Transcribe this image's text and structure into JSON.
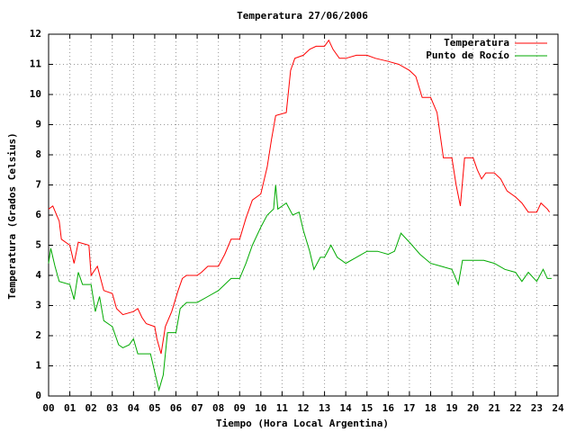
{
  "chart_data": {
    "type": "line",
    "title": "Temperatura 27/06/2006",
    "x_label": "Tiempo (Hora Local Argentina)",
    "y_label": "Temperatura (Grados Celsius)",
    "xlim": [
      0,
      24
    ],
    "xticks": [
      {
        "value": 0,
        "label": "00"
      },
      {
        "value": 1,
        "label": "01"
      },
      {
        "value": 2,
        "label": "02"
      },
      {
        "value": 3,
        "label": "03"
      },
      {
        "value": 4,
        "label": "04"
      },
      {
        "value": 5,
        "label": "05"
      },
      {
        "value": 6,
        "label": "06"
      },
      {
        "value": 7,
        "label": "07"
      },
      {
        "value": 8,
        "label": "08"
      },
      {
        "value": 9,
        "label": "09"
      },
      10,
      11,
      12,
      13,
      14,
      15,
      16,
      17,
      18,
      19,
      20,
      21,
      22,
      23,
      24
    ],
    "ylim": [
      0,
      12
    ],
    "yticks": [
      0,
      1,
      2,
      3,
      4,
      5,
      6,
      7,
      8,
      9,
      10,
      11,
      12
    ],
    "grid": true,
    "legend": "top-right",
    "series": [
      {
        "name": "Temperatura",
        "color": "#ff0000",
        "x": [
          0.0,
          0.2,
          0.5,
          0.6,
          1.0,
          1.2,
          1.4,
          1.9,
          2.0,
          2.3,
          2.6,
          3.0,
          3.2,
          3.5,
          4.0,
          4.2,
          4.4,
          4.6,
          5.0,
          5.1,
          5.3,
          5.5,
          5.8,
          6.1,
          6.3,
          6.5,
          7.0,
          7.2,
          7.5,
          8.0,
          8.3,
          8.6,
          9.0,
          9.3,
          9.6,
          10.0,
          10.3,
          10.5,
          10.7,
          11.2,
          11.4,
          11.6,
          12.0,
          12.3,
          12.6,
          13.0,
          13.2,
          13.4,
          13.7,
          14.0,
          14.5,
          15.0,
          15.4,
          16.0,
          16.5,
          17.0,
          17.3,
          17.6,
          18.0,
          18.3,
          18.6,
          19.0,
          19.2,
          19.4,
          19.6,
          20.0,
          20.2,
          20.4,
          20.6,
          21.0,
          21.3,
          21.6,
          22.0,
          22.3,
          22.6,
          23.0,
          23.2,
          23.5,
          23.6
        ],
        "values": [
          6.2,
          6.3,
          5.8,
          5.2,
          5.0,
          4.4,
          5.1,
          5.0,
          4.0,
          4.3,
          3.5,
          3.4,
          2.9,
          2.7,
          2.8,
          2.9,
          2.6,
          2.4,
          2.3,
          1.9,
          1.4,
          2.3,
          2.8,
          3.5,
          3.9,
          4.0,
          4.0,
          4.1,
          4.3,
          4.3,
          4.7,
          5.2,
          5.2,
          5.9,
          6.5,
          6.7,
          7.6,
          8.5,
          9.3,
          9.4,
          10.8,
          11.2,
          11.3,
          11.5,
          11.6,
          11.6,
          11.8,
          11.5,
          11.2,
          11.2,
          11.3,
          11.3,
          11.2,
          11.1,
          11.0,
          10.8,
          10.6,
          9.9,
          9.9,
          9.4,
          7.9,
          7.9,
          7.0,
          6.3,
          7.9,
          7.9,
          7.5,
          7.2,
          7.4,
          7.4,
          7.2,
          6.8,
          6.6,
          6.4,
          6.1,
          6.1,
          6.4,
          6.2,
          6.1
        ]
      },
      {
        "name": "Punto de Rocío",
        "color": "#00aa00",
        "x": [
          0.0,
          0.1,
          0.3,
          0.5,
          1.0,
          1.2,
          1.4,
          1.6,
          2.0,
          2.2,
          2.4,
          2.6,
          3.0,
          3.3,
          3.5,
          3.8,
          4.0,
          4.2,
          4.8,
          5.0,
          5.2,
          5.4,
          5.6,
          6.0,
          6.2,
          6.5,
          7.0,
          7.5,
          8.0,
          8.3,
          8.6,
          9.0,
          9.3,
          9.6,
          10.0,
          10.3,
          10.6,
          10.7,
          10.8,
          11.2,
          11.5,
          11.8,
          12.0,
          12.3,
          12.5,
          12.8,
          13.0,
          13.3,
          13.6,
          14.0,
          14.5,
          15.0,
          15.5,
          16.0,
          16.3,
          16.6,
          17.0,
          17.5,
          18.0,
          18.5,
          19.0,
          19.3,
          19.5,
          20.0,
          20.5,
          21.0,
          21.5,
          22.0,
          22.3,
          22.6,
          23.0,
          23.3,
          23.5,
          23.7
        ],
        "values": [
          4.4,
          4.9,
          4.3,
          3.8,
          3.7,
          3.2,
          4.1,
          3.7,
          3.7,
          2.8,
          3.3,
          2.5,
          2.3,
          1.7,
          1.6,
          1.7,
          1.9,
          1.4,
          1.4,
          0.8,
          0.2,
          0.7,
          2.1,
          2.1,
          2.9,
          3.1,
          3.1,
          3.3,
          3.5,
          3.7,
          3.9,
          3.9,
          4.4,
          5.0,
          5.6,
          6.0,
          6.2,
          7.0,
          6.2,
          6.4,
          6.0,
          6.1,
          5.5,
          4.8,
          4.2,
          4.6,
          4.6,
          5.0,
          4.6,
          4.4,
          4.6,
          4.8,
          4.8,
          4.7,
          4.8,
          5.4,
          5.1,
          4.7,
          4.4,
          4.3,
          4.2,
          3.7,
          4.5,
          4.5,
          4.5,
          4.4,
          4.2,
          4.1,
          3.8,
          4.1,
          3.8,
          4.2,
          3.9,
          3.9
        ]
      }
    ]
  }
}
